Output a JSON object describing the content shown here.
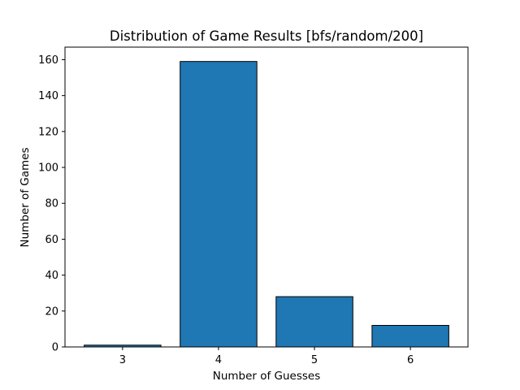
{
  "chart_data": {
    "type": "bar",
    "title": "Distribution of Game Results [bfs/random/200]",
    "xlabel": "Number of Guesses",
    "ylabel": "Number of Games",
    "categories": [
      "3",
      "4",
      "5",
      "6"
    ],
    "values": [
      1,
      159,
      28,
      12
    ],
    "ylim": [
      0,
      167
    ],
    "yticks": [
      0,
      20,
      40,
      60,
      80,
      100,
      120,
      140,
      160
    ],
    "grid": false,
    "legend": "none",
    "colors": {
      "bar_fill": "#1f77b4",
      "bar_edge": "#000000",
      "axis": "#000000",
      "background": "#ffffff"
    }
  }
}
